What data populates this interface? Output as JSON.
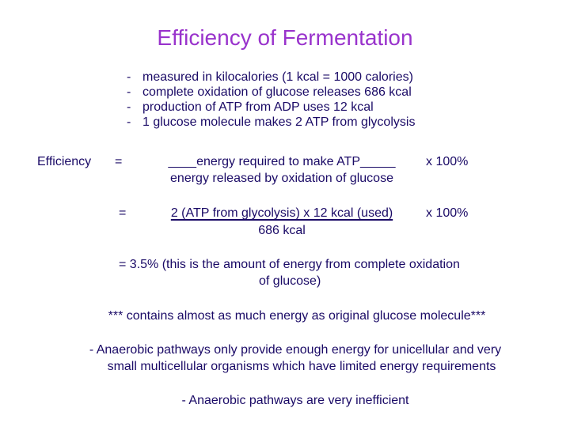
{
  "title": "Efficiency of Fermentation",
  "bullets": [
    {
      "dash": "-",
      "text": "measured in kilocalories  (1 kcal = 1000 calories)"
    },
    {
      "dash": "-",
      "text": "complete oxidation of glucose releases 686 kcal"
    },
    {
      "dash": "-",
      "text": "production of ATP from ADP uses 12 kcal"
    },
    {
      "dash": "-",
      "text": "1 glucose molecule makes 2 ATP from glycolysis"
    }
  ],
  "equation1": {
    "label": "Efficiency",
    "equals": "=",
    "numerator": "____energy required to make ATP_____",
    "denominator": "energy released by oxidation of glucose",
    "multiplier": "x  100%"
  },
  "equation2": {
    "equals": "=",
    "numerator": "2 (ATP from glycolysis)  x  12 kcal (used)",
    "denominator": "686 kcal",
    "multiplier": "x  100%"
  },
  "result": {
    "line1": "=   3.5%  (this is the amount of energy from complete oxidation",
    "line2": "of glucose)"
  },
  "note": "***  contains almost as much energy as original glucose molecule***",
  "anaerobic1": {
    "line1": "-  Anaerobic pathways only provide enough energy for unicellular and very",
    "line2": "small multicellular organisms which have limited energy requirements"
  },
  "anaerobic2": "-  Anaerobic pathways are very inefficient"
}
